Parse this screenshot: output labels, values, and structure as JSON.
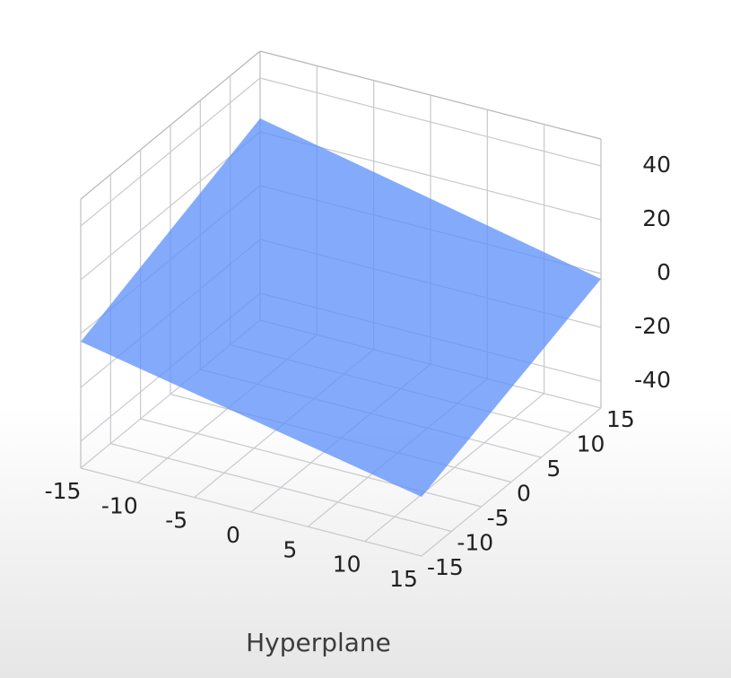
{
  "chart_data": {
    "type": "surface",
    "title": "Hyperplane",
    "x": [
      -15,
      15
    ],
    "y": [
      -15,
      15
    ],
    "z": [
      [
        -3,
        25
      ],
      [
        -28,
        -2
      ]
    ],
    "color": "#5b8ff9",
    "xlim": [
      -15,
      15
    ],
    "ylim": [
      -15,
      15
    ],
    "zlim": [
      -50,
      50
    ],
    "xticks": [
      -15,
      -10,
      -5,
      0,
      5,
      10,
      15
    ],
    "yticks": [
      -15,
      -10,
      -5,
      0,
      5,
      10,
      15
    ],
    "zticks": [
      -40,
      -20,
      0,
      20,
      40
    ],
    "grid": true
  }
}
